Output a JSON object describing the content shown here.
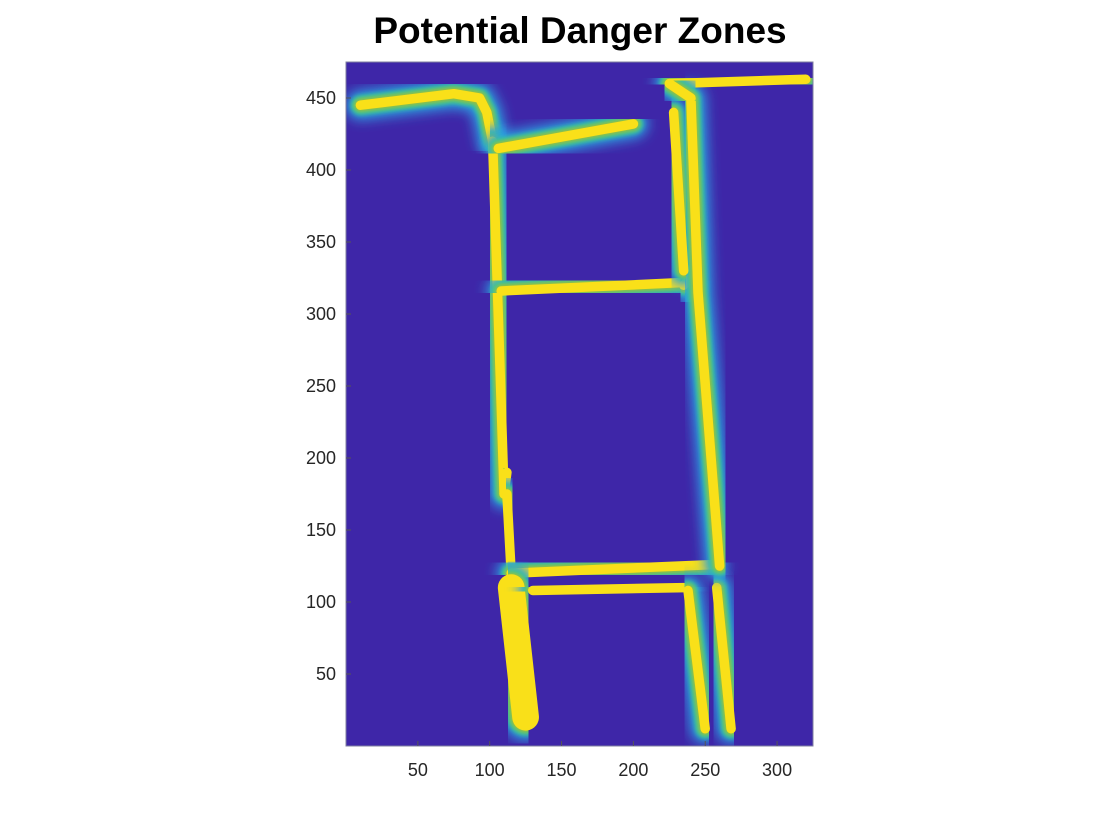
{
  "chart_data": {
    "type": "heatmap",
    "title": "Potential Danger Zones",
    "xlabel": "",
    "ylabel": "",
    "xlim": [
      0,
      325
    ],
    "ylim": [
      0,
      475
    ],
    "x_ticks": [
      50,
      100,
      150,
      200,
      250,
      300
    ],
    "y_ticks": [
      50,
      100,
      150,
      200,
      250,
      300,
      350,
      400,
      450
    ],
    "grid": false,
    "colormap": [
      "#3e26a8",
      "#2f9ce1",
      "#28c8a4",
      "#a5be35",
      "#f9e019"
    ],
    "background_value": 0,
    "road_segments": [
      {
        "path": [
          [
            10,
            445
          ],
          [
            75,
            453
          ],
          [
            93,
            450
          ],
          [
            98,
            440
          ],
          [
            102,
            420
          ]
        ],
        "value": 0.85,
        "halfwidth": 4
      },
      {
        "path": [
          [
            102,
            420
          ],
          [
            110,
            175
          ]
        ],
        "value": 0.85,
        "halfwidth": 4
      },
      {
        "path": [
          [
            106,
            415
          ],
          [
            200,
            432
          ]
        ],
        "value": 0.85,
        "halfwidth": 4
      },
      {
        "path": [
          [
            108,
            316
          ],
          [
            238,
            322
          ]
        ],
        "value": 0.9,
        "halfwidth": 4
      },
      {
        "path": [
          [
            235,
            320
          ],
          [
            245,
            330
          ],
          [
            245,
            312
          ]
        ],
        "value": 1.0,
        "halfwidth": 4
      },
      {
        "path": [
          [
            110,
            175
          ],
          [
            112,
            190
          ]
        ],
        "value": 0.85,
        "halfwidth": 4
      },
      {
        "path": [
          [
            112,
            175
          ],
          [
            115,
            120
          ]
        ],
        "value": 0.85,
        "halfwidth": 4
      },
      {
        "path": [
          [
            115,
            120
          ],
          [
            255,
            126
          ]
        ],
        "value": 0.85,
        "halfwidth": 4
      },
      {
        "path": [
          [
            115,
            110
          ],
          [
            125,
            20
          ]
        ],
        "value": 1.0,
        "halfwidth": 10
      },
      {
        "path": [
          [
            130,
            108
          ],
          [
            235,
            110
          ]
        ],
        "value": 0.85,
        "halfwidth": 4
      },
      {
        "path": [
          [
            238,
            108
          ],
          [
            250,
            12
          ]
        ],
        "value": 0.85,
        "halfwidth": 4
      },
      {
        "path": [
          [
            258,
            110
          ],
          [
            268,
            12
          ]
        ],
        "value": 0.85,
        "halfwidth": 4
      },
      {
        "path": [
          [
            240,
            450
          ],
          [
            245,
            315
          ],
          [
            260,
            125
          ]
        ],
        "value": 0.9,
        "halfwidth": 4
      },
      {
        "path": [
          [
            228,
            440
          ],
          [
            235,
            330
          ]
        ],
        "value": 0.85,
        "halfwidth": 4
      },
      {
        "path": [
          [
            225,
            460
          ],
          [
            320,
            463
          ]
        ],
        "value": 0.85,
        "halfwidth": 4
      },
      {
        "path": [
          [
            225,
            460
          ],
          [
            240,
            450
          ]
        ],
        "value": 1.0,
        "halfwidth": 4
      }
    ]
  }
}
